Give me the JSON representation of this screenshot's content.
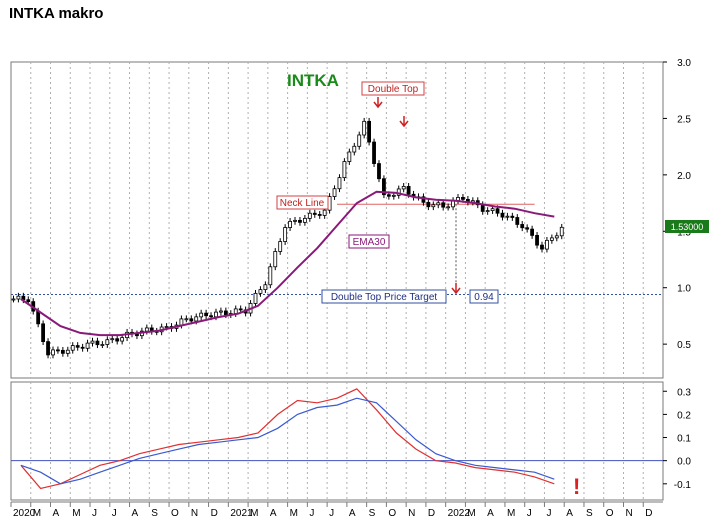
{
  "page": {
    "title": "INTKA makro"
  },
  "chart_data": [
    {
      "type": "candlestick",
      "title": "INTKA",
      "title_color": "#1a8a1a",
      "ylim": [
        0.2,
        3.0
      ],
      "yticks": [
        "0.5",
        "1.0",
        "1.5",
        "2.0",
        "2.5",
        "3.0"
      ],
      "last_price": "1.53000",
      "x_months": [
        "2020",
        "M",
        "A",
        "M",
        "J",
        "J",
        "A",
        "S",
        "O",
        "N",
        "D",
        "2021",
        "M",
        "A",
        "M",
        "J",
        "J",
        "A",
        "S",
        "O",
        "N",
        "D",
        "2022",
        "M",
        "A",
        "M",
        "J",
        "J",
        "A",
        "S",
        "O",
        "N",
        "D"
      ],
      "closes_by_month": [
        0.9,
        0.42,
        0.45,
        0.5,
        0.52,
        0.58,
        0.62,
        0.64,
        0.72,
        0.76,
        0.78,
        0.8,
        1.05,
        1.55,
        1.62,
        1.68,
        2.1,
        2.45,
        1.8,
        1.88,
        1.75,
        1.72,
        1.8,
        1.7,
        1.65,
        1.55,
        1.35,
        1.53
      ],
      "ema_by_month": [
        0.9,
        0.78,
        0.66,
        0.6,
        0.58,
        0.58,
        0.6,
        0.62,
        0.66,
        0.7,
        0.74,
        0.77,
        0.84,
        1.0,
        1.18,
        1.35,
        1.55,
        1.75,
        1.85,
        1.84,
        1.8,
        1.78,
        1.77,
        1.75,
        1.72,
        1.7,
        1.66,
        1.63
      ],
      "neck_line": 1.74,
      "price_target": 0.94,
      "annotations": {
        "double_top": "Double Top",
        "neck_line": "Neck Line",
        "ema": "EMA30",
        "target": "Double Top Price Target",
        "target_value": "0.94"
      }
    },
    {
      "type": "line",
      "ylim": [
        -0.17,
        0.34
      ],
      "yticks": [
        "-0.1",
        "0.0",
        "0.1",
        "0.2",
        "0.3"
      ],
      "zero_line": 0.0,
      "series": [
        {
          "color": "#e03030",
          "values": [
            -0.02,
            -0.12,
            -0.1,
            -0.06,
            -0.02,
            0.0,
            0.03,
            0.05,
            0.07,
            0.08,
            0.09,
            0.1,
            0.12,
            0.2,
            0.26,
            0.25,
            0.27,
            0.31,
            0.22,
            0.12,
            0.05,
            0.0,
            -0.01,
            -0.03,
            -0.04,
            -0.05,
            -0.07,
            -0.1
          ]
        },
        {
          "color": "#3a5ad0",
          "values": [
            -0.02,
            -0.05,
            -0.1,
            -0.08,
            -0.05,
            -0.02,
            0.01,
            0.03,
            0.05,
            0.07,
            0.08,
            0.09,
            0.1,
            0.14,
            0.2,
            0.23,
            0.24,
            0.27,
            0.25,
            0.17,
            0.09,
            0.03,
            0.0,
            -0.02,
            -0.03,
            -0.04,
            -0.05,
            -0.08
          ]
        }
      ],
      "warning_mark": "!"
    }
  ]
}
